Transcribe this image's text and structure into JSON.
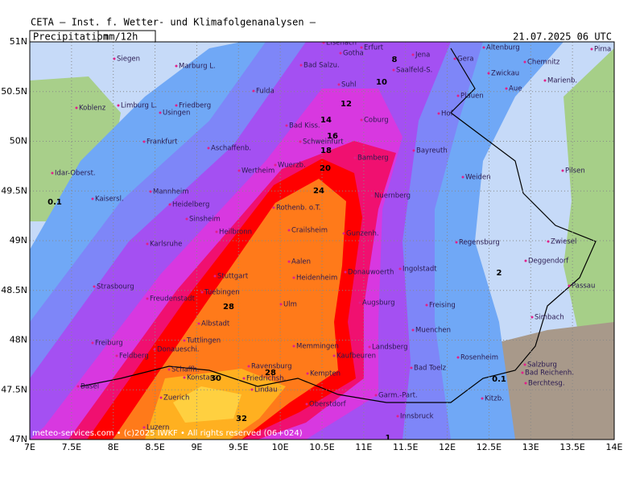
{
  "header": {
    "title": "CETA – Inst. f. Wetter- und Klimafolgenanalysen –",
    "product": "Precipitation",
    "unit": "mm/12h",
    "valid": "21.07.2025 06 UTC"
  },
  "map": {
    "lat_labels": [
      "51N",
      "50.5N",
      "50N",
      "49.5N",
      "49N",
      "48.5N",
      "48N",
      "47.5N",
      "47N"
    ],
    "lon_labels": [
      "7E",
      "7.5E",
      "8E",
      "8.5E",
      "9E",
      "9.5E",
      "10E",
      "10.5E",
      "11E",
      "11.5E",
      "12E",
      "12.5E",
      "13E",
      "13.5E",
      "14E"
    ],
    "cities": [
      "Eisenach",
      "Gotha",
      "Erfurt",
      "Jena",
      "Gera",
      "Altenburg",
      "Chemnitz",
      "Siegen",
      "Marburg L.",
      "Bad Salzu.",
      "Saalfeld-S.",
      "Zwickau",
      "Suhl",
      "Plauen",
      "Aue",
      "Marienb.",
      "Koblenz",
      "Limburg L.",
      "Friedberg",
      "Fulda",
      "Usingen",
      "Hof",
      "Coburg",
      "Bad Kiss.",
      "Schweinfurt",
      "Frankfurt",
      "Aschaffenb.",
      "Bayreuth",
      "Bamberg",
      "Idar-Oberst.",
      "Wertheim",
      "Wuerzb.",
      "Weiden",
      "Pilsen",
      "Mannheim",
      "Nuernberg",
      "Kaisersl.",
      "Heidelberg",
      "Rothenb. o.T.",
      "Sinsheim",
      "Heilbronn",
      "Crailsheim",
      "Gunzenh.",
      "Regensburg",
      "Zwiesel",
      "Karlsruhe",
      "Ingolstadt",
      "Aalen",
      "Deggendorf",
      "Stuttgart",
      "Heidenheim",
      "Donauwoerth",
      "Strasbourg",
      "Tuebingen",
      "Passau",
      "Freudenstadt",
      "Ulm",
      "Augsburg",
      "Freising",
      "Simbach",
      "Albstadt",
      "Muenchen",
      "Tuttlingen",
      "Freiburg",
      "Memmingen",
      "Landsberg",
      "Kaufbeuren",
      "Donaueschi.",
      "Rosenheim",
      "Salzburg",
      "Ravensburg",
      "Bad Toelz",
      "Bad Reichenh.",
      "Schaffh.",
      "Konstanz",
      "Friedrichsh.",
      "Kempten",
      "Berchtesg.",
      "Basel",
      "Lindau",
      "Oberstdorf",
      "Garm.-Part.",
      "Kitzb.",
      "Zuerich",
      "Innsbruck",
      "Luzern",
      "Pirna",
      "Feldberg"
    ],
    "contour_labels": [
      "8",
      "10",
      "12",
      "14",
      "16",
      "18",
      "20",
      "24",
      "2",
      "28",
      "28",
      "30",
      "32",
      "0.1",
      "0.1",
      "1"
    ],
    "footer": "meteo-services.com • (c)2025 IWKF • All rights reserved (06+024)"
  }
}
